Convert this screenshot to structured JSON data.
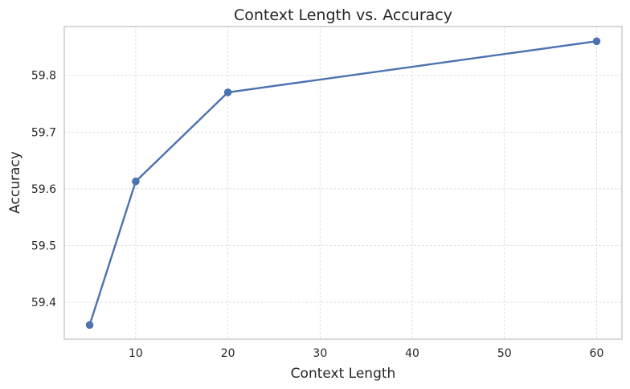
{
  "chart_data": {
    "type": "line",
    "title": "Context Length vs. Accuracy",
    "xlabel": "Context Length",
    "ylabel": "Accuracy",
    "x": [
      5,
      10,
      20,
      60
    ],
    "series": [
      {
        "values": [
          59.36,
          59.613,
          59.77,
          59.86
        ]
      }
    ],
    "xlim": [
      2.25,
      62.75
    ],
    "ylim": [
      59.335,
      59.886
    ],
    "xticks": [
      10,
      20,
      30,
      40,
      50,
      60
    ],
    "xtick_labels": [
      "10",
      "20",
      "30",
      "40",
      "50",
      "60"
    ],
    "yticks": [
      59.4,
      59.5,
      59.6,
      59.7,
      59.8
    ],
    "ytick_labels": [
      "59.4",
      "59.5",
      "59.6",
      "59.7",
      "59.8"
    ],
    "grid": true,
    "legend": "none",
    "colors": {
      "line": "#4c72b0"
    }
  }
}
